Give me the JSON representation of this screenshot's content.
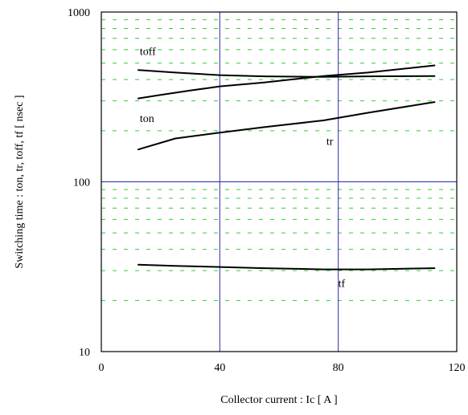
{
  "chart_data": {
    "type": "line",
    "title": "",
    "xlabel": "Collector current : Ic [ A ]",
    "ylabel": "Switching time : ton, tr, toff, tf [ nsec ]",
    "xlim": [
      0,
      120
    ],
    "ylim": [
      10,
      1000
    ],
    "yscale": "log",
    "x_ticks": [
      0,
      40,
      80,
      120
    ],
    "x_tick_labels": [
      "0",
      "40",
      "80",
      "120"
    ],
    "y_ticks": [
      10,
      100,
      1000
    ],
    "y_tick_labels": [
      "10",
      "100",
      "1000"
    ],
    "grid": {
      "major": "solid blue lines at x = 40, 80 and y = 100",
      "minor": "dashed green lines at 20,30,...,90 and 200,300,...,900"
    },
    "legend": "none (series labeled directly on plot)",
    "series": [
      {
        "name": "toff",
        "x": [
          12.5,
          25,
          40,
          55,
          75,
          90,
          112.5
        ],
        "y": [
          455,
          440,
          425,
          418,
          415,
          418,
          420
        ],
        "label_pos": {
          "x": 13,
          "y": 560
        }
      },
      {
        "name": "ton",
        "x": [
          12.5,
          20,
          30,
          40,
          55,
          75,
          90,
          112.5
        ],
        "y": [
          310,
          325,
          345,
          365,
          385,
          420,
          440,
          485
        ],
        "label_pos": {
          "x": 13,
          "y": 225
        }
      },
      {
        "name": "tr",
        "x": [
          12.5,
          25,
          40,
          55,
          75,
          90,
          112.5
        ],
        "y": [
          155,
          180,
          195,
          210,
          230,
          255,
          295
        ],
        "label_pos": {
          "x": 76,
          "y": 165
        }
      },
      {
        "name": "tf",
        "x": [
          12.5,
          25,
          40,
          55,
          75,
          90,
          112.5
        ],
        "y": [
          32.5,
          32,
          31.5,
          31,
          30.5,
          30.5,
          31
        ],
        "label_pos": {
          "x": 80,
          "y": 24
        }
      }
    ]
  }
}
